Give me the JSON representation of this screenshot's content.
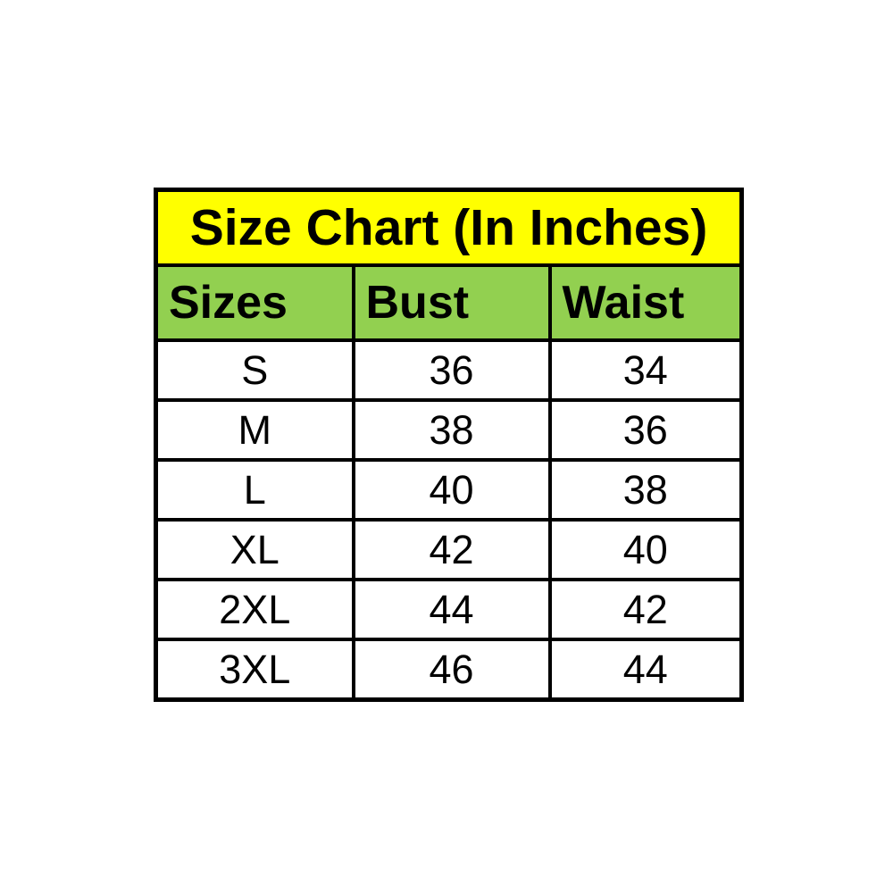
{
  "chart_data": {
    "type": "table",
    "title": "Size Chart (In Inches)",
    "columns": [
      "Sizes",
      "Bust",
      "Waist"
    ],
    "rows": [
      [
        "S",
        "36",
        "34"
      ],
      [
        "M",
        "38",
        "36"
      ],
      [
        "L",
        "40",
        "38"
      ],
      [
        "XL",
        "42",
        "40"
      ],
      [
        "2XL",
        "44",
        "42"
      ],
      [
        "3XL",
        "46",
        "44"
      ]
    ],
    "layout": {
      "title_bg": "#ffff00",
      "header_bg": "#92d050",
      "body_bg": "#ffffff",
      "border_color": "#000000",
      "text_color": "#000000",
      "grid": "on",
      "units": "inches"
    }
  }
}
